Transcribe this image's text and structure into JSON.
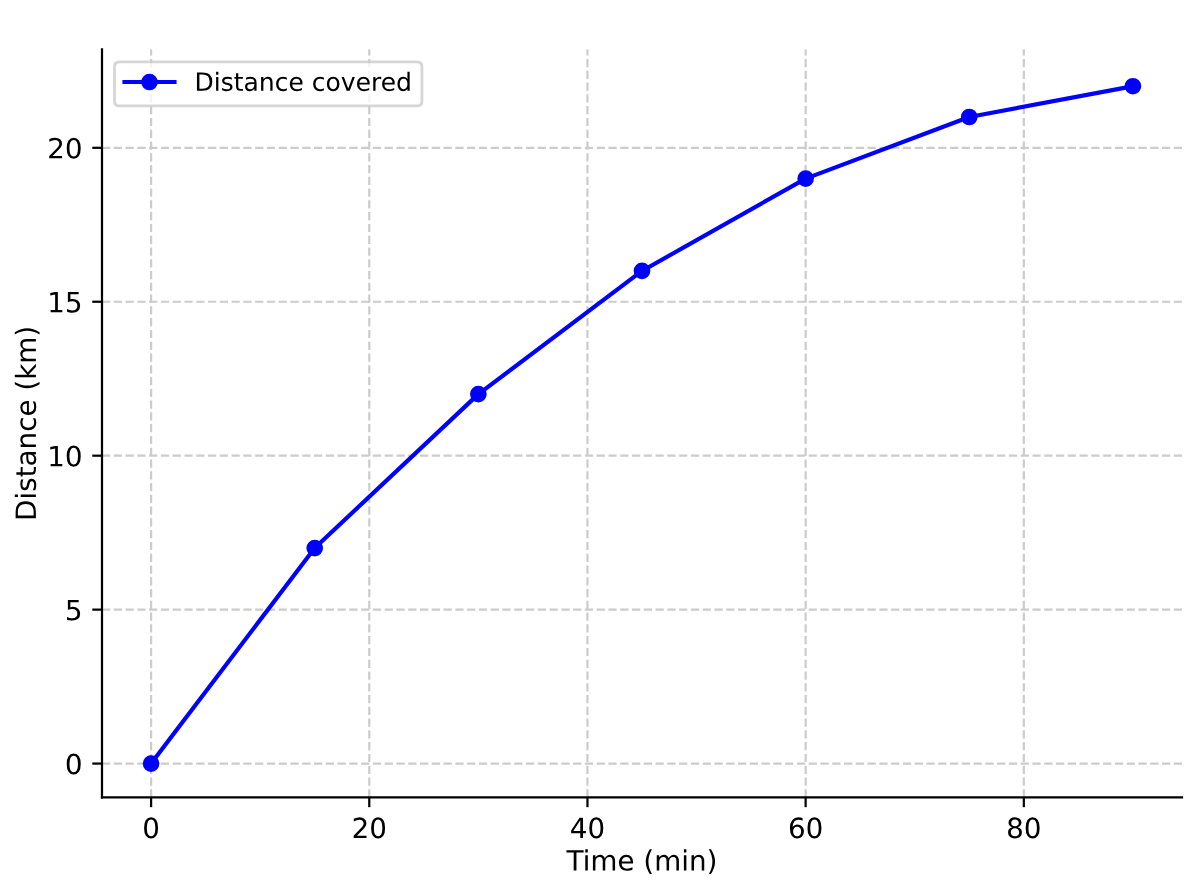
{
  "chart_data": {
    "type": "line",
    "xlabel": "Time (min)",
    "ylabel": "Distance (km)",
    "x": [
      0,
      15,
      30,
      45,
      60,
      75,
      90
    ],
    "series": [
      {
        "name": "Distance covered",
        "color": "#0000ff",
        "values": [
          0,
          7,
          12,
          16,
          19,
          21,
          22
        ]
      }
    ],
    "xlim": [
      -4.5,
      94.5
    ],
    "ylim": [
      -1.1,
      23.2
    ],
    "xticks": [
      0,
      20,
      40,
      60,
      80
    ],
    "yticks": [
      0,
      5,
      10,
      15,
      20
    ],
    "grid": true,
    "legend": "top left",
    "marker": "circle",
    "line_style": "solid"
  }
}
